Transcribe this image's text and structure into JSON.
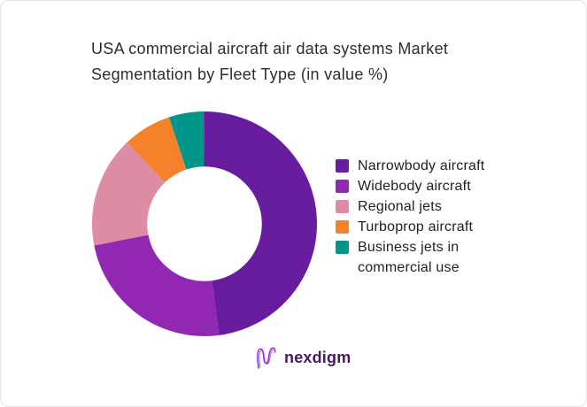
{
  "chart_data": {
    "type": "pie",
    "subtype": "donut",
    "title": "USA commercial aircraft air data systems Market Segmentation by Fleet Type (in value %)",
    "unit": "value %",
    "legend_position": "right",
    "donut_hole_ratio": 0.51,
    "start_angle_deg": 0,
    "direction": "clockwise",
    "series": [
      {
        "label": "Narrowbody aircraft",
        "value": 48,
        "color": "#681CA0"
      },
      {
        "label": "Widebody aircraft",
        "value": 24,
        "color": "#9227B4"
      },
      {
        "label": "Regional jets",
        "value": 16,
        "color": "#DD8CA4"
      },
      {
        "label": "Turboprop aircraft",
        "value": 7,
        "color": "#F5812A"
      },
      {
        "label": "Business jets in commercial use",
        "value": 5,
        "color": "#00968A"
      }
    ]
  },
  "branding": {
    "logo_text": "nexdigm",
    "logo_color": "#4A1767",
    "logo_gradient_start": "#7B2FF7",
    "logo_gradient_end": "#C026D3"
  }
}
